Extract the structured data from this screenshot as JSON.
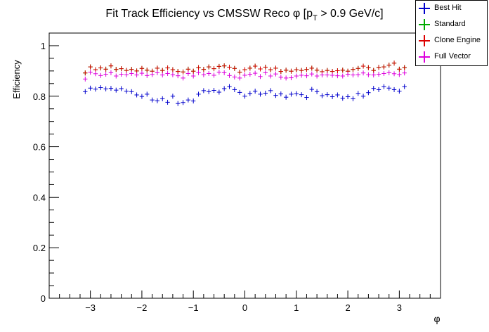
{
  "chart_data": {
    "type": "scatter",
    "title": "Fit Track Efficiency vs CMSSW Reco φ [p_T > 0.9 GeV/c]",
    "title_parts": {
      "before": "Fit Track Efficiency vs CMSSW Reco φ [p",
      "subscript": "T",
      "after": " > 0.9 GeV/c]"
    },
    "xlabel": "φ",
    "ylabel": "Efficiency",
    "xlim": [
      -3.8,
      3.8
    ],
    "ylim": [
      0,
      1.05
    ],
    "xticks": [
      "−3",
      "−2",
      "−1",
      "0",
      "1",
      "2",
      "3"
    ],
    "xtick_values": [
      -3,
      -2,
      -1,
      0,
      1,
      2,
      3
    ],
    "yticks": [
      "0",
      "0.2",
      "0.4",
      "0.6",
      "0.8",
      "1"
    ],
    "ytick_values": [
      0,
      0.2,
      0.4,
      0.6,
      0.8,
      1.0
    ],
    "grid": false,
    "legend_position": "top-right",
    "x": [
      -3.1,
      -3.0,
      -2.9,
      -2.8,
      -2.7,
      -2.6,
      -2.5,
      -2.4,
      -2.3,
      -2.2,
      -2.1,
      -2.0,
      -1.9,
      -1.8,
      -1.7,
      -1.6,
      -1.5,
      -1.4,
      -1.3,
      -1.2,
      -1.1,
      -1.0,
      -0.9,
      -0.8,
      -0.7,
      -0.6,
      -0.5,
      -0.4,
      -0.3,
      -0.2,
      -0.1,
      0.0,
      0.1,
      0.2,
      0.3,
      0.4,
      0.5,
      0.6,
      0.7,
      0.8,
      0.9,
      1.0,
      1.1,
      1.2,
      1.3,
      1.4,
      1.5,
      1.6,
      1.7,
      1.8,
      1.9,
      2.0,
      2.1,
      2.2,
      2.3,
      2.4,
      2.5,
      2.6,
      2.7,
      2.8,
      2.9,
      3.0,
      3.1
    ],
    "series": [
      {
        "name": "Best Hit",
        "color": "#0000cc",
        "values": [
          0.818,
          0.832,
          0.828,
          0.834,
          0.829,
          0.831,
          0.824,
          0.83,
          0.82,
          0.818,
          0.805,
          0.799,
          0.808,
          0.785,
          0.782,
          0.79,
          0.776,
          0.8,
          0.771,
          0.775,
          0.785,
          0.781,
          0.808,
          0.822,
          0.818,
          0.823,
          0.816,
          0.83,
          0.838,
          0.826,
          0.815,
          0.8,
          0.811,
          0.82,
          0.808,
          0.812,
          0.822,
          0.803,
          0.809,
          0.796,
          0.808,
          0.81,
          0.806,
          0.795,
          0.827,
          0.818,
          0.802,
          0.806,
          0.798,
          0.805,
          0.792,
          0.798,
          0.79,
          0.811,
          0.8,
          0.814,
          0.831,
          0.826,
          0.838,
          0.832,
          0.826,
          0.82,
          0.838
        ]
      },
      {
        "name": "Standard",
        "color": "#00aa00",
        "values": [
          0.892,
          0.916,
          0.905,
          0.912,
          0.907,
          0.92,
          0.906,
          0.909,
          0.902,
          0.906,
          0.9,
          0.91,
          0.903,
          0.899,
          0.911,
          0.902,
          0.912,
          0.905,
          0.898,
          0.896,
          0.907,
          0.899,
          0.913,
          0.906,
          0.916,
          0.909,
          0.918,
          0.92,
          0.915,
          0.91,
          0.895,
          0.905,
          0.911,
          0.919,
          0.908,
          0.915,
          0.905,
          0.911,
          0.898,
          0.903,
          0.899,
          0.905,
          0.902,
          0.906,
          0.911,
          0.903,
          0.897,
          0.902,
          0.898,
          0.901,
          0.903,
          0.899,
          0.906,
          0.91,
          0.919,
          0.913,
          0.902,
          0.914,
          0.916,
          0.923,
          0.931,
          0.907,
          0.913
        ]
      },
      {
        "name": "Clone Engine",
        "color": "#dd0000",
        "values": [
          0.892,
          0.916,
          0.905,
          0.912,
          0.907,
          0.92,
          0.906,
          0.909,
          0.902,
          0.906,
          0.9,
          0.91,
          0.903,
          0.899,
          0.911,
          0.902,
          0.912,
          0.905,
          0.898,
          0.896,
          0.907,
          0.899,
          0.913,
          0.906,
          0.916,
          0.909,
          0.918,
          0.92,
          0.915,
          0.91,
          0.895,
          0.905,
          0.911,
          0.919,
          0.908,
          0.915,
          0.905,
          0.911,
          0.898,
          0.903,
          0.899,
          0.905,
          0.902,
          0.906,
          0.911,
          0.903,
          0.897,
          0.902,
          0.898,
          0.901,
          0.903,
          0.899,
          0.906,
          0.91,
          0.919,
          0.913,
          0.902,
          0.914,
          0.916,
          0.923,
          0.931,
          0.907,
          0.913
        ]
      },
      {
        "name": "Full Vector",
        "color": "#dd00dd",
        "values": [
          0.868,
          0.895,
          0.889,
          0.882,
          0.887,
          0.893,
          0.88,
          0.887,
          0.885,
          0.89,
          0.884,
          0.891,
          0.882,
          0.886,
          0.893,
          0.884,
          0.89,
          0.885,
          0.881,
          0.872,
          0.89,
          0.88,
          0.893,
          0.885,
          0.89,
          0.883,
          0.895,
          0.893,
          0.882,
          0.876,
          0.872,
          0.883,
          0.887,
          0.891,
          0.878,
          0.893,
          0.88,
          0.888,
          0.875,
          0.872,
          0.873,
          0.88,
          0.883,
          0.881,
          0.888,
          0.88,
          0.884,
          0.884,
          0.883,
          0.881,
          0.88,
          0.887,
          0.884,
          0.885,
          0.892,
          0.885,
          0.884,
          0.887,
          0.89,
          0.893,
          0.889,
          0.886,
          0.892
        ]
      }
    ]
  }
}
